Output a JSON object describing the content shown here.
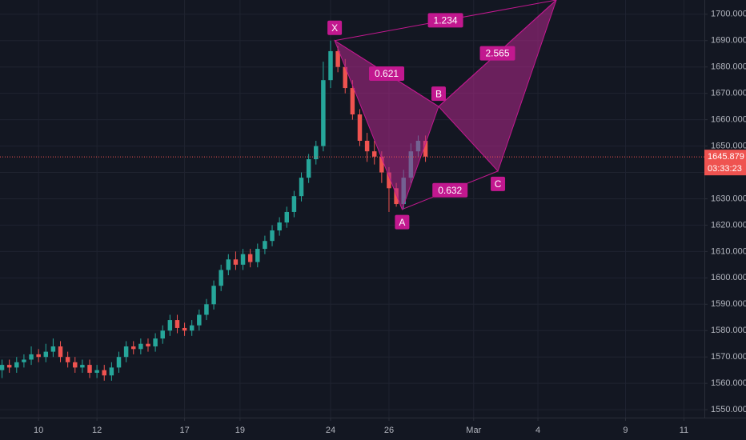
{
  "chart_data": {
    "type": "candlestick",
    "colors": {
      "up": "#26a69a",
      "down": "#ef5350",
      "grid": "#1f2330",
      "background": "#131722",
      "pattern": "#c2188f",
      "pattern_fill": "rgba(178,40,140,0.55)",
      "price_line": "#ef5350"
    },
    "grid": true,
    "xlim": [
      -1.32,
      22.8
    ],
    "ylim": [
      1547,
      1705.4
    ],
    "xticks": [
      {
        "value": 0,
        "label": "10"
      },
      {
        "value": 2,
        "label": "12"
      },
      {
        "value": 5,
        "label": "17"
      },
      {
        "value": 6.9,
        "label": "19"
      },
      {
        "value": 10,
        "label": "24"
      },
      {
        "value": 12,
        "label": "26"
      },
      {
        "value": 14.9,
        "label": "Mar"
      },
      {
        "value": 17.1,
        "label": "4"
      },
      {
        "value": 20.1,
        "label": "9"
      },
      {
        "value": 22.1,
        "label": "11"
      }
    ],
    "yticks": [
      {
        "value": 1550,
        "label": "1550.000"
      },
      {
        "value": 1560,
        "label": "1560.000"
      },
      {
        "value": 1570,
        "label": "1570.000"
      },
      {
        "value": 1580,
        "label": "1580.000"
      },
      {
        "value": 1590,
        "label": "1590.000"
      },
      {
        "value": 1600,
        "label": "1600.000"
      },
      {
        "value": 1610,
        "label": "1610.000"
      },
      {
        "value": 1620,
        "label": "1620.000"
      },
      {
        "value": 1630,
        "label": "1630.000"
      },
      {
        "value": 1640,
        "label": "1640.000"
      },
      {
        "value": 1650,
        "label": "1650.000"
      },
      {
        "value": 1660,
        "label": "1660.000"
      },
      {
        "value": 1670,
        "label": "1670.000"
      },
      {
        "value": 1680,
        "label": "1680.000"
      },
      {
        "value": 1690,
        "label": "1690.000"
      },
      {
        "value": 1700,
        "label": "1700.000"
      }
    ],
    "x": [
      -1.25,
      -1,
      -0.75,
      -0.5,
      -0.25,
      0,
      0.25,
      0.5,
      0.75,
      1,
      1.25,
      1.5,
      1.75,
      2,
      2.25,
      2.5,
      2.75,
      3,
      3.25,
      3.5,
      3.75,
      4,
      4.25,
      4.5,
      4.75,
      5,
      5.25,
      5.5,
      5.75,
      6,
      6.25,
      6.5,
      6.75,
      7,
      7.25,
      7.5,
      7.75,
      8,
      8.25,
      8.5,
      8.75,
      9,
      9.25,
      9.5,
      9.75,
      10,
      10.25,
      10.5,
      10.75,
      11,
      11.25,
      11.5,
      11.75,
      12,
      12.25,
      12.5,
      12.75,
      13,
      13.25
    ],
    "open": [
      1565,
      1567,
      1566,
      1568,
      1569,
      1571,
      1570,
      1572,
      1574,
      1570,
      1568,
      1566,
      1567,
      1564,
      1565,
      1563,
      1566,
      1570,
      1574,
      1573,
      1575,
      1574,
      1577,
      1580,
      1584,
      1581,
      1580,
      1582,
      1586,
      1590,
      1597,
      1603,
      1607,
      1605,
      1609,
      1606,
      1611,
      1614,
      1618,
      1621,
      1625,
      1631,
      1638,
      1645,
      1650,
      1675,
      1686,
      1680,
      1672,
      1662,
      1652,
      1648,
      1646,
      1640,
      1634,
      1628,
      1638,
      1648,
      1652
    ],
    "close": [
      1567,
      1566,
      1568,
      1569,
      1571,
      1570,
      1572,
      1574,
      1570,
      1568,
      1566,
      1567,
      1564,
      1565,
      1563,
      1566,
      1570,
      1574,
      1573,
      1575,
      1574,
      1577,
      1580,
      1584,
      1581,
      1580,
      1582,
      1586,
      1590,
      1597,
      1603,
      1607,
      1605,
      1609,
      1606,
      1611,
      1614,
      1618,
      1621,
      1625,
      1631,
      1638,
      1645,
      1650,
      1675,
      1686,
      1680,
      1672,
      1662,
      1652,
      1648,
      1646,
      1640,
      1634,
      1628,
      1638,
      1648,
      1652,
      1646
    ],
    "high": [
      1569,
      1569,
      1570,
      1571,
      1574,
      1573,
      1575,
      1577,
      1576,
      1572,
      1570,
      1569,
      1569,
      1567,
      1567,
      1568,
      1572,
      1576,
      1576,
      1577,
      1577,
      1579,
      1582,
      1586,
      1586,
      1583,
      1584,
      1588,
      1592,
      1599,
      1605,
      1609,
      1610,
      1611,
      1611,
      1613,
      1616,
      1620,
      1623,
      1627,
      1633,
      1640,
      1647,
      1652,
      1682,
      1690,
      1688,
      1683,
      1675,
      1664,
      1655,
      1652,
      1648,
      1642,
      1636,
      1641,
      1651,
      1654,
      1654
    ],
    "low": [
      1562,
      1564,
      1564,
      1566,
      1567,
      1568,
      1568,
      1570,
      1568,
      1566,
      1564,
      1564,
      1562,
      1562,
      1561,
      1561,
      1564,
      1568,
      1571,
      1571,
      1572,
      1572,
      1575,
      1578,
      1579,
      1578,
      1578,
      1580,
      1584,
      1588,
      1595,
      1601,
      1603,
      1603,
      1604,
      1604,
      1609,
      1612,
      1616,
      1619,
      1623,
      1629,
      1636,
      1643,
      1648,
      1672,
      1678,
      1670,
      1660,
      1650,
      1644,
      1643,
      1636,
      1625,
      1627,
      1626,
      1636,
      1646,
      1644
    ],
    "last_price": 1645.879,
    "countdown": "03:33:23",
    "pattern": {
      "points": [
        {
          "label": "X",
          "x": 10.14,
          "y": 1690
        },
        {
          "label": "A",
          "x": 12.45,
          "y": 1626
        },
        {
          "label": "B",
          "x": 13.7,
          "y": 1665
        },
        {
          "label": "C",
          "x": 15.73,
          "y": 1640.5
        },
        {
          "x": 17.73,
          "y": 1705.4
        }
      ],
      "ratios": [
        {
          "value": 1.234,
          "between": [
            0,
            4
          ]
        },
        {
          "value": 0.621,
          "between": [
            0,
            2
          ]
        },
        {
          "value": 2.565,
          "between": [
            2,
            4
          ]
        },
        {
          "value": 0.632,
          "between": [
            1,
            3
          ]
        }
      ]
    }
  }
}
